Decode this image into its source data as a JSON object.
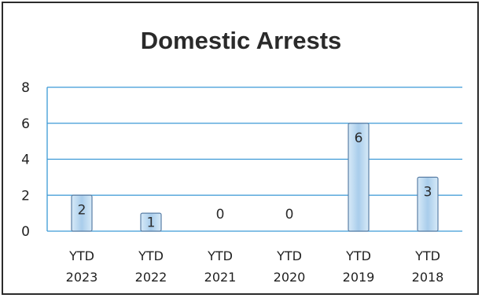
{
  "chart_data": {
    "type": "bar",
    "title": "Domestic Arrests",
    "categories": [
      [
        "YTD",
        "2023"
      ],
      [
        "YTD",
        "2022"
      ],
      [
        "YTD",
        "2021"
      ],
      [
        "YTD",
        "2020"
      ],
      [
        "YTD",
        "2019"
      ],
      [
        "YTD",
        "2018"
      ]
    ],
    "values": [
      2,
      1,
      0,
      0,
      6,
      3
    ],
    "data_labels": [
      "2",
      "1",
      "0",
      "0",
      "6",
      "3"
    ],
    "y_ticks": [
      "0",
      "2",
      "4",
      "6",
      "8"
    ],
    "ylim": [
      0,
      8
    ],
    "grid": true,
    "legend": "none",
    "colors": {
      "bar_fill": "#bcd9ef",
      "bar_edge": "#5a7fa6",
      "grid": "#3c9ad6",
      "text": "#1f1f1f"
    }
  }
}
